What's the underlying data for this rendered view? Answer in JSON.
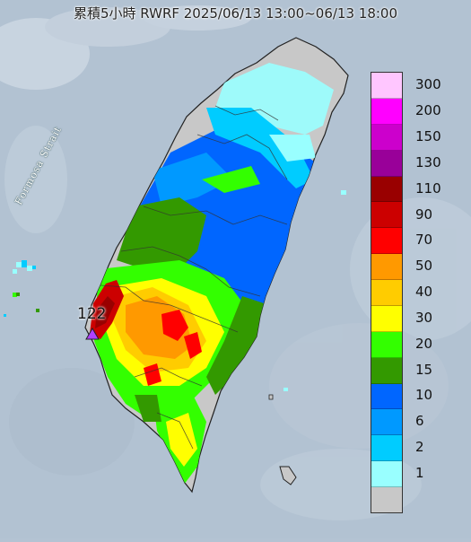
{
  "title": "累積5小時 RWRF 2025/06/13 13:00~06/13 18:00",
  "strait_label": "Formosa Strait",
  "max_marker": {
    "value": "122",
    "color": "#b040ff"
  },
  "legend": [
    {
      "label": "300",
      "color": "#ffc6ff"
    },
    {
      "label": "200",
      "color": "#ff00ff"
    },
    {
      "label": "150",
      "color": "#cc00cc"
    },
    {
      "label": "130",
      "color": "#990099"
    },
    {
      "label": "110",
      "color": "#990000"
    },
    {
      "label": "90",
      "color": "#cc0000"
    },
    {
      "label": "70",
      "color": "#ff0000"
    },
    {
      "label": "50",
      "color": "#ff9900"
    },
    {
      "label": "40",
      "color": "#ffcc00"
    },
    {
      "label": "30",
      "color": "#ffff00"
    },
    {
      "label": "20",
      "color": "#33ff00"
    },
    {
      "label": "15",
      "color": "#339900"
    },
    {
      "label": "10",
      "color": "#0066ff"
    },
    {
      "label": "6",
      "color": "#0099ff"
    },
    {
      "label": "2",
      "color": "#00ccff"
    },
    {
      "label": "1",
      "color": "#99ffff"
    },
    {
      "label": "",
      "color": "#c8c8c8"
    }
  ]
}
